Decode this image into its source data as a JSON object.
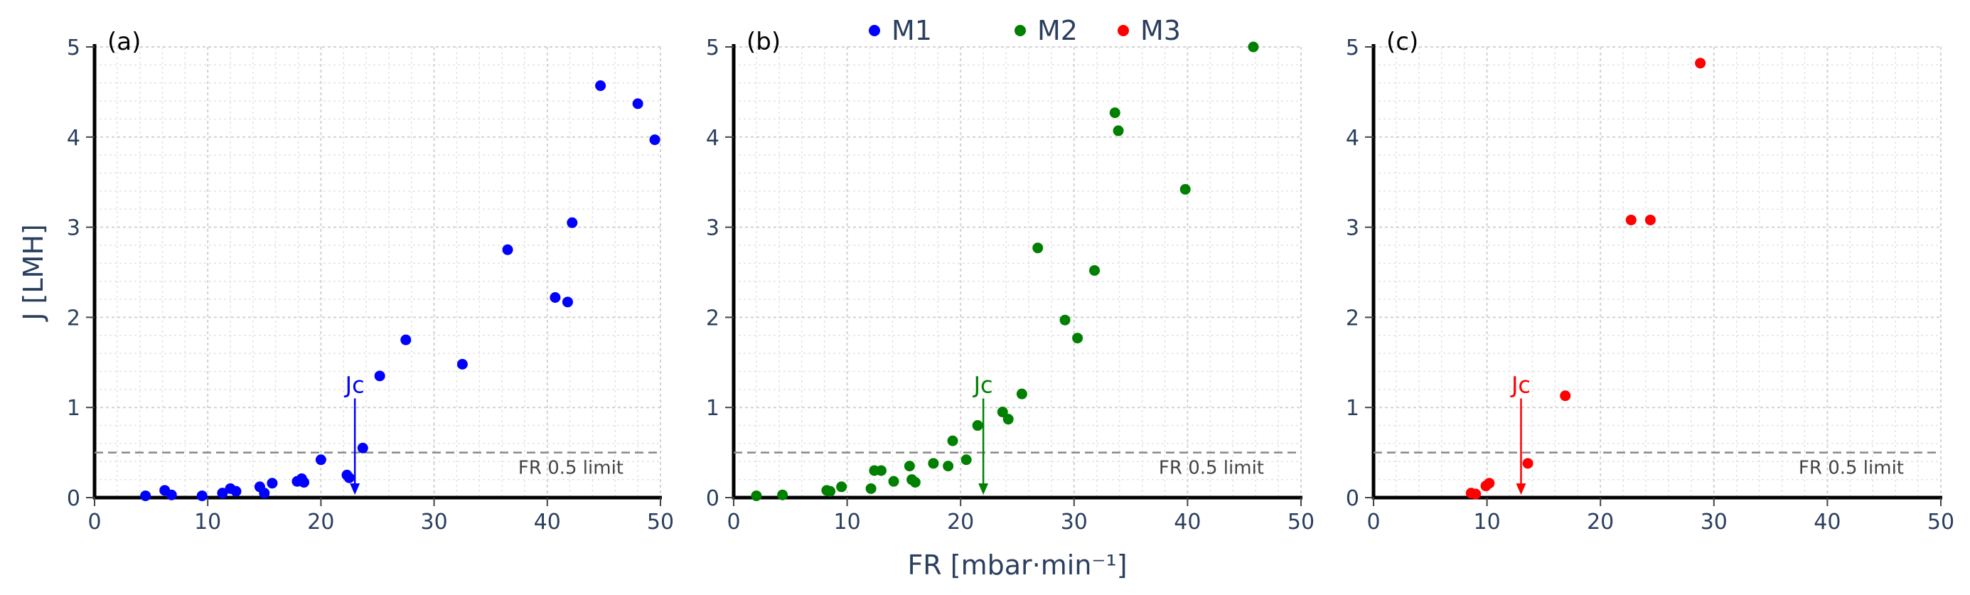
{
  "chart_data": {
    "type": "scatter",
    "x_title": "FR [mbar·min⁻¹]",
    "y_title": "J [LMH]",
    "xlim": [
      0,
      50
    ],
    "ylim": [
      0,
      5
    ],
    "x_ticks": [
      "0",
      "10",
      "20",
      "30",
      "40",
      "50"
    ],
    "y_ticks": [
      "0",
      "1",
      "2",
      "3",
      "4",
      "5"
    ],
    "limit_value": 0.5,
    "legend": [
      {
        "name": "M1",
        "color": "#0000ff"
      },
      {
        "name": "M2",
        "color": "#008000"
      },
      {
        "name": "M3",
        "color": "#ff0000"
      }
    ],
    "panels": [
      {
        "label": "(a)",
        "series": "M1",
        "color": "#0000ff",
        "limit_label": "FR 0.5 limit",
        "jc_label": "Jc",
        "jc_x": 23.0,
        "x": [
          4.5,
          6.2,
          6.8,
          9.5,
          11.3,
          12.0,
          12.5,
          14.6,
          15.0,
          15.7,
          17.9,
          18.3,
          18.5,
          20.0,
          22.3,
          22.5,
          23.7,
          25.2,
          27.5,
          32.5,
          36.5,
          40.7,
          41.8,
          42.2,
          44.7,
          48.0,
          49.5
        ],
        "y": [
          0.02,
          0.08,
          0.03,
          0.02,
          0.05,
          0.1,
          0.07,
          0.12,
          0.05,
          0.16,
          0.18,
          0.21,
          0.17,
          0.42,
          0.25,
          0.22,
          0.55,
          1.35,
          1.75,
          1.48,
          2.75,
          2.22,
          2.17,
          3.05,
          4.57,
          4.37,
          3.97
        ]
      },
      {
        "label": "(b)",
        "series": "M2",
        "color": "#008000",
        "limit_label": "FR 0.5 limit",
        "jc_label": "Jc",
        "jc_x": 22.0,
        "x": [
          2.0,
          4.3,
          8.2,
          8.5,
          9.5,
          12.1,
          12.4,
          13.0,
          14.1,
          15.5,
          15.7,
          16.0,
          17.6,
          18.9,
          19.3,
          20.5,
          21.5,
          23.7,
          24.2,
          25.4,
          26.8,
          29.2,
          30.3,
          31.8,
          33.6,
          33.9,
          39.8,
          45.8
        ],
        "y": [
          0.02,
          0.03,
          0.08,
          0.07,
          0.12,
          0.1,
          0.3,
          0.3,
          0.18,
          0.35,
          0.2,
          0.17,
          0.38,
          0.35,
          0.63,
          0.42,
          0.8,
          0.95,
          0.87,
          1.15,
          2.77,
          1.97,
          1.77,
          2.52,
          4.27,
          4.07,
          3.42,
          5.0
        ]
      },
      {
        "label": "(c)",
        "series": "M3",
        "color": "#ff0000",
        "limit_label": "FR 0.5 limit",
        "jc_label": "Jc",
        "jc_x": 13.0,
        "x": [
          8.6,
          9.0,
          9.9,
          10.2,
          13.6,
          16.9,
          22.7,
          24.4,
          28.8
        ],
        "y": [
          0.05,
          0.04,
          0.13,
          0.16,
          0.38,
          1.13,
          3.08,
          3.08,
          4.82
        ]
      }
    ]
  }
}
